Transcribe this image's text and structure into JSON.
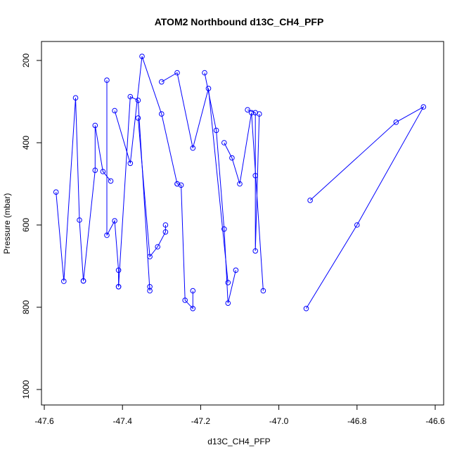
{
  "chart_data": {
    "type": "line",
    "title": "ATOM2 Northbound d13C_CH4_PFP",
    "xlabel": "d13C_CH4_PFP",
    "ylabel": "Pressure (mbar)",
    "xlim": [
      -47.6,
      -46.6
    ],
    "ylim": [
      1030,
      160
    ],
    "y_reversed": true,
    "x_ticks": [
      -47.6,
      -47.4,
      -47.2,
      -47.0,
      -46.8,
      -46.6
    ],
    "x_tick_labels": [
      "-47.6",
      "-47.4",
      "-47.2",
      "-47.0",
      "-46.8",
      "-46.6"
    ],
    "y_ticks": [
      200,
      400,
      600,
      800,
      1000
    ],
    "y_tick_labels": [
      "200",
      "400",
      "600",
      "800",
      "1000"
    ],
    "marker": "open-circle",
    "series_color": "#0000ff",
    "grid": false,
    "series": [
      {
        "x": [
          -47.57,
          -47.55,
          -47.52,
          -47.51,
          -47.5
        ],
        "y": [
          520,
          737,
          291,
          588,
          736
        ]
      },
      {
        "x": [
          -47.5,
          -47.47,
          -47.47,
          -47.45,
          -47.43
        ],
        "y": [
          736,
          467,
          358,
          470,
          493
        ]
      },
      {
        "x": [
          -47.44,
          -47.44,
          -47.42,
          -47.41,
          -47.41
        ],
        "y": [
          248,
          625,
          590,
          710,
          750
        ]
      },
      {
        "x": [
          -47.41,
          -47.38,
          -47.36,
          -47.33,
          -47.33
        ],
        "y": [
          750,
          288,
          297,
          760,
          750
        ]
      },
      {
        "x": [
          -47.36,
          -47.33,
          -47.31,
          -47.29,
          -47.29
        ],
        "y": [
          340,
          677,
          653,
          617,
          600
        ]
      },
      {
        "x": [
          -47.26,
          -47.25,
          -47.24,
          -47.22,
          -47.22
        ],
        "y": [
          500,
          503,
          783,
          803,
          760
        ]
      },
      {
        "x": [
          -47.14,
          -47.12,
          -47.1,
          -47.07,
          -47.04
        ],
        "y": [
          400,
          437,
          500,
          327,
          760
        ]
      },
      {
        "x": [
          -47.08,
          -47.06,
          -47.06,
          -47.06,
          -47.05
        ],
        "y": [
          320,
          327,
          480,
          663,
          330
        ]
      },
      {
        "x": [
          -46.92,
          -46.7,
          -46.63,
          -46.8,
          -46.93
        ],
        "y": [
          540,
          350,
          313,
          600,
          803
        ]
      },
      {
        "x": [
          -47.42,
          -47.38,
          -47.35,
          -47.3,
          -47.26
        ],
        "y": [
          322,
          450,
          190,
          330,
          500
        ]
      },
      {
        "x": [
          -47.3,
          -47.26,
          -47.22,
          -47.18,
          -47.13
        ],
        "y": [
          252,
          230,
          413,
          268,
          740
        ]
      },
      {
        "x": [
          -47.19,
          -47.16,
          -47.14,
          -47.13,
          -47.11
        ],
        "y": [
          230,
          370,
          610,
          790,
          710
        ]
      }
    ]
  }
}
